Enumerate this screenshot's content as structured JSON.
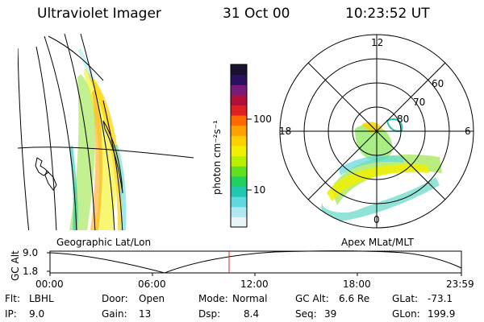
{
  "header": {
    "instrument": "Ultraviolet Imager",
    "date": "31 Oct 00",
    "time": "10:23:52 UT"
  },
  "colorbar": {
    "unit_label": "photon cm⁻²s⁻¹",
    "ticks": [
      "100",
      "10"
    ],
    "colors": [
      "#1a1030",
      "#2a1060",
      "#7a1a7a",
      "#b0103a",
      "#e02020",
      "#ff6a00",
      "#ffa000",
      "#ffd000",
      "#f0f000",
      "#b8f000",
      "#60e020",
      "#20d060",
      "#20c8b0",
      "#60d8e0",
      "#b0e8f0",
      "#e8f4f8"
    ]
  },
  "left_panel": {
    "label": "Geographic Lat/Lon"
  },
  "right_panel": {
    "label": "Apex MLat/MLT",
    "mlt_labels": [
      "12",
      "18",
      "6",
      "0"
    ],
    "lat_labels": [
      "60",
      "70",
      "80"
    ]
  },
  "altitude_plot": {
    "ylabel": "GC Alt",
    "yticks": [
      "9.0",
      "1.8"
    ],
    "xticks": [
      "00:00",
      "06:00",
      "12:00",
      "18:00",
      "23:59"
    ],
    "marker_color": "#e02020"
  },
  "info": {
    "flt_label": "Flt:",
    "flt_value": "LBHL",
    "ip_label": "IP:",
    "ip_value": "9.0",
    "door_label": "Door:",
    "door_value": "Open",
    "gain_label": "Gain:",
    "gain_value": "13",
    "mode_label": "Mode:",
    "mode_value": "Normal",
    "dsp_label": "Dsp:",
    "dsp_value": "8.4",
    "gcalt_label": "GC Alt:",
    "gcalt_value": "6.6 Re",
    "seq_label": "Seq:",
    "seq_value": "39",
    "glat_label": "GLat:",
    "glat_value": "-73.1",
    "glon_label": "GLon:",
    "glon_value": "199.9"
  }
}
